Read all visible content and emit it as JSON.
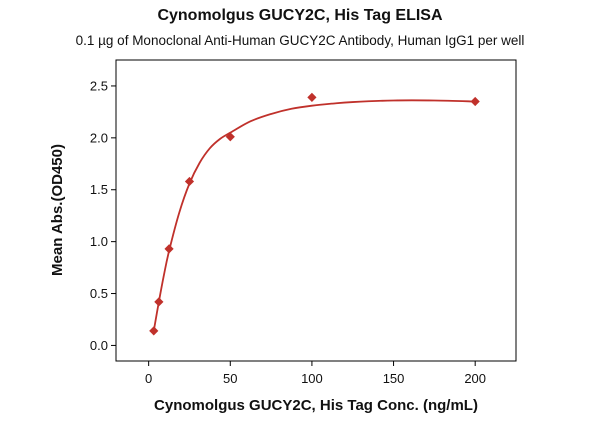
{
  "chart_data": {
    "type": "scatter",
    "title": "Cynomolgus GUCY2C, His Tag ELISA",
    "subtitle": "0.1 µg of Monoclonal Anti-Human GUCY2C Antibody, Human IgG1 per well",
    "xlabel": "Cynomolgus GUCY2C, His Tag Conc. (ng/mL)",
    "ylabel": "Mean Abs.(OD450)",
    "xlim": [
      -20,
      225
    ],
    "ylim": [
      -0.15,
      2.75
    ],
    "x_ticks": [
      0,
      50,
      100,
      150,
      200
    ],
    "y_ticks": [
      0.0,
      0.5,
      1.0,
      1.5,
      2.0,
      2.5
    ],
    "y_tick_labels": [
      "0.0",
      "0.5",
      "1.0",
      "1.5",
      "2.0",
      "2.5"
    ],
    "grid": false,
    "colors": {
      "series": "#c0312b"
    },
    "series": [
      {
        "marker": "diamond",
        "x": [
          3.125,
          6.25,
          12.5,
          25,
          50,
          100,
          200
        ],
        "y": [
          0.14,
          0.42,
          0.93,
          1.58,
          2.01,
          2.39,
          2.35
        ]
      }
    ],
    "fit_curve": {
      "x": [
        3.125,
        6.25,
        9.375,
        12.5,
        18.75,
        25,
        31.25,
        37.5,
        43.75,
        50,
        62.5,
        75,
        87.5,
        100,
        112.5,
        125,
        150,
        175,
        200
      ],
      "y": [
        0.14,
        0.42,
        0.68,
        0.91,
        1.28,
        1.56,
        1.76,
        1.9,
        1.99,
        2.05,
        2.16,
        2.23,
        2.28,
        2.31,
        2.33,
        2.345,
        2.36,
        2.36,
        2.35
      ]
    }
  }
}
